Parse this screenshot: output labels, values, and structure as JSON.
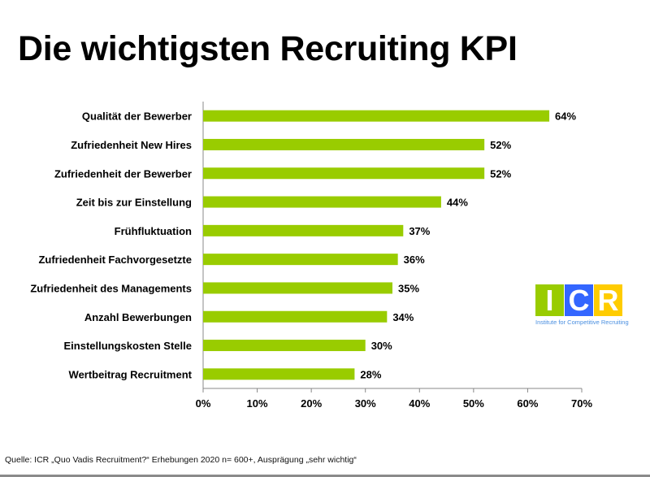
{
  "title": "Die wichtigsten Recruiting KPI",
  "chart_data": {
    "type": "bar",
    "orientation": "horizontal",
    "title": "Die wichtigsten Recruiting KPI",
    "categories": [
      "Qualität der Bewerber",
      "Zufriedenheit New Hires",
      "Zufriedenheit der Bewerber",
      "Zeit bis zur Einstellung",
      "Frühfluktuation",
      "Zufriedenheit Fachvorgesetzte",
      "Zufriedenheit des Managements",
      "Anzahl Bewerbungen",
      "Einstellungskosten Stelle",
      "Wertbeitrag Recruitment"
    ],
    "values": [
      64,
      52,
      52,
      44,
      37,
      36,
      35,
      34,
      30,
      28
    ],
    "data_labels": [
      "64%",
      "52%",
      "52%",
      "44%",
      "37%",
      "36%",
      "35%",
      "34%",
      "30%",
      "28%"
    ],
    "xlim": [
      0,
      70
    ],
    "xticks": [
      "0%",
      "10%",
      "20%",
      "30%",
      "40%",
      "50%",
      "60%",
      "70%"
    ],
    "xlabel": "",
    "ylabel": "",
    "grid": false,
    "bar_color": "#99cc00"
  },
  "logo": {
    "letters": [
      "I",
      "C",
      "R"
    ],
    "colors": [
      "#99cc00",
      "#3366ff",
      "#ffcc00"
    ],
    "subtitle": "Institute for Competitive Recruiting"
  },
  "footer": "Quelle: ICR „Quo Vadis Recruitment?“ Erhebungen 2020 n= 600+, Ausprägung „sehr wichtig“"
}
